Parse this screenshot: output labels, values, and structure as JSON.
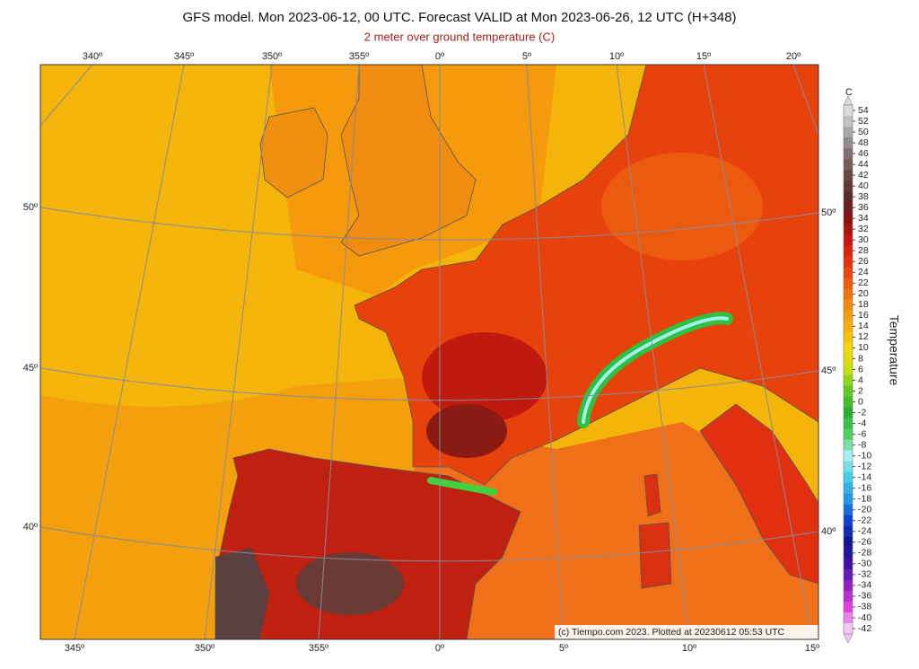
{
  "header": {
    "title": "GFS model. Mon 2023-06-12, 00 UTC. Forecast VALID at Mon 2023-06-26, 12 UTC (H+348)",
    "subtitle": "2 meter over ground temperature (C)"
  },
  "map": {
    "top_lon_labels": [
      "340º",
      "345º",
      "350º",
      "355º",
      "0º",
      "5º",
      "10º",
      "15º",
      "20º"
    ],
    "bottom_lon_labels": [
      "345º",
      "350º",
      "355º",
      "0º",
      "5º",
      "10º",
      "15º"
    ],
    "left_lat_labels": [
      "50º",
      "45º",
      "40º"
    ],
    "right_lat_labels": [
      "50º",
      "45º",
      "40º"
    ],
    "credit": "(c) Tiempo.com 2023. Plotted at 20230612 05:53 UTC"
  },
  "colorbar": {
    "unit": "C",
    "label": "Temperature",
    "ticks": [
      54,
      52,
      50,
      48,
      46,
      44,
      42,
      40,
      38,
      36,
      34,
      32,
      30,
      28,
      26,
      24,
      22,
      20,
      18,
      16,
      14,
      12,
      10,
      8,
      6,
      4,
      2,
      0,
      -2,
      -4,
      -6,
      -8,
      -10,
      -12,
      -14,
      -16,
      -18,
      -20,
      -22,
      -24,
      -26,
      -28,
      -30,
      -32,
      -34,
      -36,
      -38,
      -40,
      -42
    ],
    "colors": [
      "#dcdcdc",
      "#a8a8a8",
      "#807070",
      "#6a4646",
      "#5a2a2a",
      "#8a1010",
      "#c81410",
      "#e8300e",
      "#f05a0e",
      "#f48a0c",
      "#f6b00a",
      "#f8d808",
      "#c8e010",
      "#60cc20",
      "#28b030",
      "#50d060",
      "#a8f0f0",
      "#40d0e8",
      "#2098e8",
      "#1040d0",
      "#101890",
      "#4010a8",
      "#9020c0",
      "#e040e0",
      "#f4c8f4"
    ]
  }
}
